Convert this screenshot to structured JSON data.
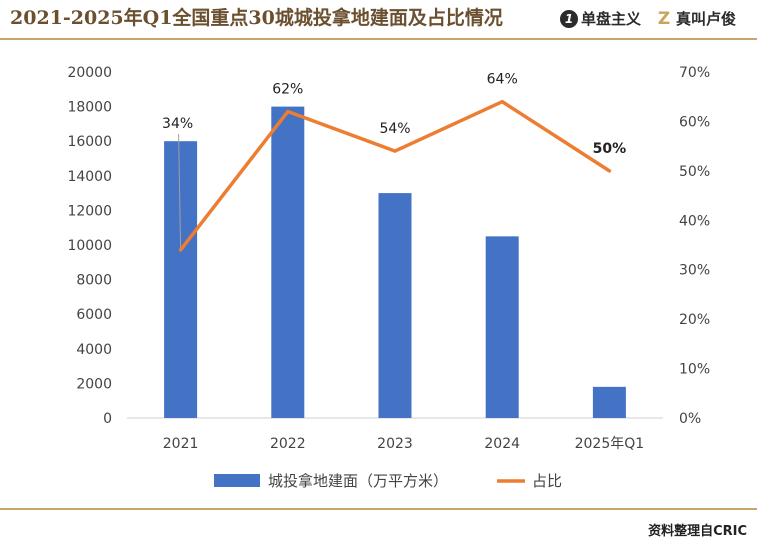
{
  "header": {
    "title": "2021-2025年Q1全国重点30城城投拿地建面及占比情况",
    "brand1": {
      "logo": "1",
      "name": "单盘主义"
    },
    "brand2": {
      "logo": "Z",
      "name": "真叫卢俊"
    }
  },
  "footer": {
    "source": "资料整理自CRIC"
  },
  "chart_data": {
    "type": "bar",
    "categories": [
      "2021",
      "2022",
      "2023",
      "2024",
      "2025年Q1"
    ],
    "series": [
      {
        "name": "城投拿地建面（万平方米）",
        "type": "bar",
        "axis": "left",
        "values": [
          16000,
          18000,
          13000,
          10500,
          1800
        ],
        "color": "#4472c4"
      },
      {
        "name": "占比",
        "type": "line",
        "axis": "right",
        "values": [
          0.34,
          0.62,
          0.54,
          0.64,
          0.5
        ],
        "color": "#ed7d31"
      }
    ],
    "data_labels": [
      "34%",
      "62%",
      "54%",
      "64%",
      "50%"
    ],
    "highlight_label_color": "#e8532a",
    "y_left": {
      "min": 0,
      "max": 20000,
      "step": 2000,
      "ticks": [
        "0",
        "2000",
        "4000",
        "6000",
        "8000",
        "10000",
        "12000",
        "14000",
        "16000",
        "18000",
        "20000"
      ]
    },
    "y_right": {
      "min": 0,
      "max": 0.7,
      "step": 0.1,
      "ticks": [
        "0%",
        "10%",
        "20%",
        "30%",
        "40%",
        "50%",
        "60%",
        "70%"
      ]
    },
    "legend_position": "bottom",
    "grid": false,
    "title": "",
    "xlabel": "",
    "ylabel": ""
  }
}
